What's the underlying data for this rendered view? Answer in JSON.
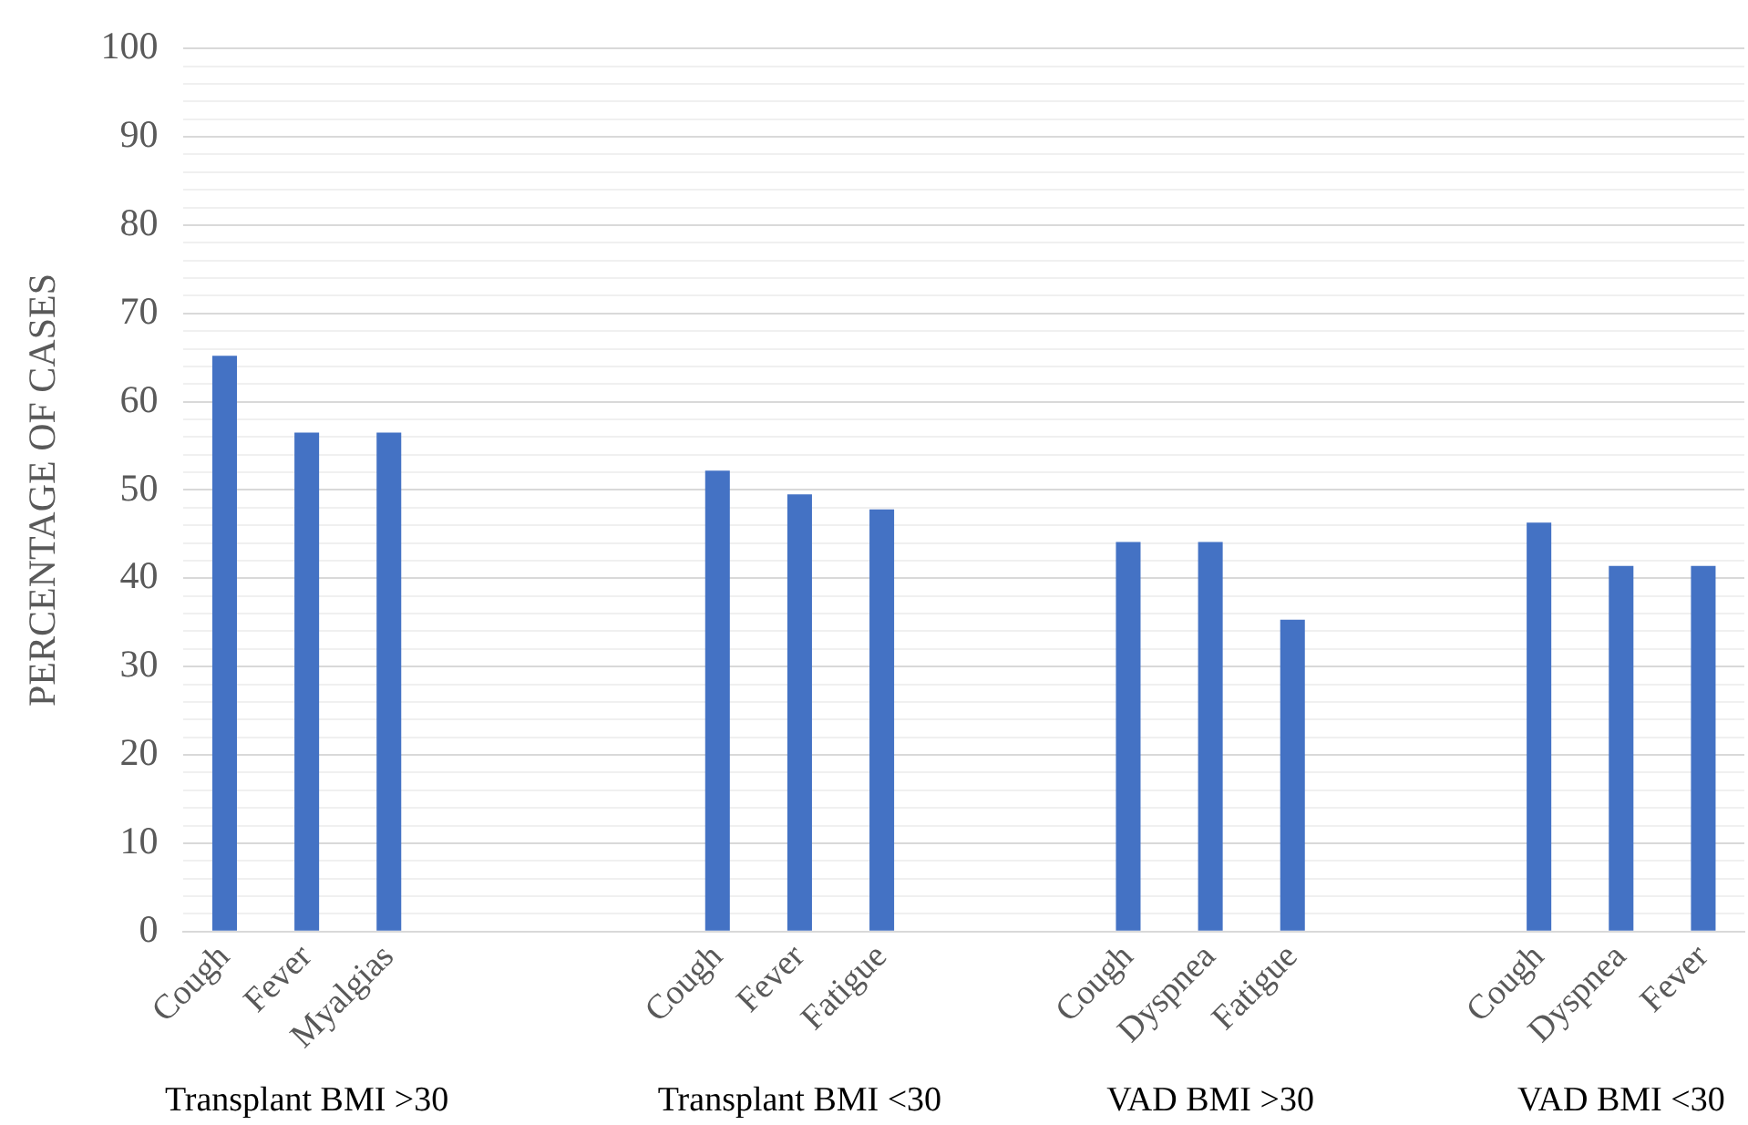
{
  "chart_data": {
    "type": "bar",
    "ylabel": "PERCENTAGE OF CASES",
    "categories": [
      "Cough",
      "Fever",
      "Myalgias",
      null,
      null,
      null,
      "Cough",
      "Fever",
      "Fatigue",
      null,
      null,
      "Cough",
      "Dyspnea",
      "Fatigue",
      null,
      null,
      "Cough",
      "Dyspnea",
      "Fever"
    ],
    "values": [
      65.2,
      56.5,
      56.5,
      null,
      null,
      null,
      52.2,
      49.5,
      47.8,
      null,
      null,
      44.1,
      44.1,
      35.3,
      null,
      null,
      46.3,
      41.4,
      41.4
    ],
    "color": "#4472c4",
    "ylim": [
      0,
      100
    ],
    "yticks": [
      0,
      {
        "value": 2,
        "label": null
      },
      {
        "value": 4,
        "label": null
      },
      {
        "value": 6,
        "label": null
      },
      {
        "value": 8,
        "label": null
      },
      10,
      {
        "value": 12,
        "label": null
      },
      {
        "value": 14,
        "label": null
      },
      {
        "value": 16,
        "label": null
      },
      {
        "value": 18,
        "label": null
      },
      20,
      {
        "value": 22,
        "label": null
      },
      {
        "value": 24,
        "label": null
      },
      {
        "value": 26,
        "label": null
      },
      {
        "value": 28,
        "label": null
      },
      30,
      {
        "value": 32,
        "label": null
      },
      {
        "value": 34,
        "label": null
      },
      {
        "value": 36,
        "label": null
      },
      {
        "value": 38,
        "label": null
      },
      40,
      {
        "value": 42,
        "label": null
      },
      {
        "value": 44,
        "label": null
      },
      {
        "value": 46,
        "label": null
      },
      {
        "value": 48,
        "label": null
      },
      50,
      {
        "value": 52,
        "label": null
      },
      {
        "value": 54,
        "label": null
      },
      {
        "value": 56,
        "label": null
      },
      {
        "value": 58,
        "label": null
      },
      60,
      {
        "value": 62,
        "label": null
      },
      {
        "value": 64,
        "label": null
      },
      {
        "value": 66,
        "label": null
      },
      {
        "value": 68,
        "label": null
      },
      70,
      {
        "value": 72,
        "label": null
      },
      {
        "value": 74,
        "label": null
      },
      {
        "value": 76,
        "label": null
      },
      {
        "value": 78,
        "label": null
      },
      80,
      {
        "value": 82,
        "label": null
      },
      {
        "value": 84,
        "label": null
      },
      {
        "value": 86,
        "label": null
      },
      {
        "value": 88,
        "label": null
      },
      90,
      {
        "value": 92,
        "label": null
      },
      {
        "value": 94,
        "label": null
      },
      {
        "value": 96,
        "label": null
      },
      {
        "value": 98,
        "label": null
      },
      100
    ],
    "grid": true,
    "legend": false,
    "annotations": [
      "Transplant BMI >30",
      "Transplant BMI <30",
      "VAD BMI >30",
      "VAD BMI <30"
    ]
  }
}
